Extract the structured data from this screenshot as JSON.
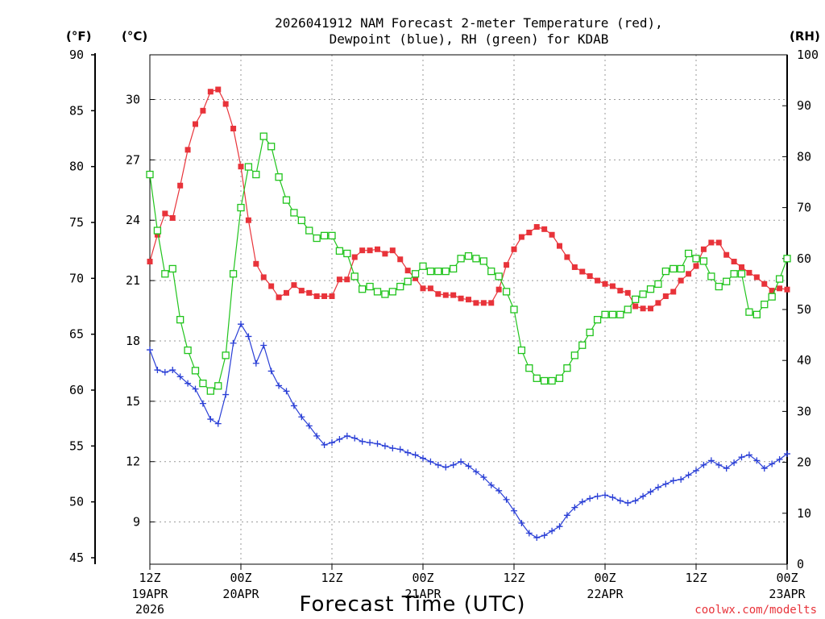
{
  "chart_data": {
    "type": "line",
    "title_line1": "2026041912 NAM Forecast 2-meter Temperature (red),",
    "title_line2": "Dewpoint (blue), RH (green) for KDAB",
    "xlabel": "Forecast Time (UTC)",
    "credit": "coolwx.com/modelts",
    "axis_units": {
      "fahrenheit": "(°F)",
      "celsius": "(°C)",
      "rh": "(RH)"
    },
    "hours_range": [
      0,
      84
    ],
    "y_fahrenheit": {
      "range": [
        45,
        90
      ],
      "ticks": [
        45,
        50,
        55,
        60,
        65,
        70,
        75,
        80,
        85,
        90
      ]
    },
    "y_celsius": {
      "ticks": [
        9,
        12,
        15,
        18,
        21,
        24,
        27,
        30
      ]
    },
    "y_rh": {
      "range": [
        0,
        100
      ],
      "ticks": [
        0,
        10,
        20,
        30,
        40,
        50,
        60,
        70,
        80,
        90,
        100
      ]
    },
    "x_ticks": [
      {
        "hour": 0,
        "line1": "12Z",
        "line2": "19APR",
        "line3": "2026"
      },
      {
        "hour": 12,
        "line1": "00Z",
        "line2": "20APR",
        "line3": ""
      },
      {
        "hour": 24,
        "line1": "12Z",
        "line2": "",
        "line3": ""
      },
      {
        "hour": 36,
        "line1": "00Z",
        "line2": "21APR",
        "line3": ""
      },
      {
        "hour": 48,
        "line1": "12Z",
        "line2": "",
        "line3": ""
      },
      {
        "hour": 60,
        "line1": "00Z",
        "line2": "22APR",
        "line3": ""
      },
      {
        "hour": 72,
        "line1": "12Z",
        "line2": "",
        "line3": ""
      },
      {
        "hour": 84,
        "line1": "00Z",
        "line2": "23APR",
        "line3": ""
      }
    ],
    "grid": true,
    "series": [
      {
        "name": "Temperature",
        "axis": "fahrenheit",
        "color": "#e8333a",
        "marker": "filled-square",
        "x": [
          0,
          1,
          2,
          3,
          4,
          5,
          6,
          7,
          8,
          9,
          10,
          11,
          12,
          13,
          14,
          15,
          16,
          17,
          18,
          19,
          20,
          21,
          22,
          23,
          24,
          25,
          26,
          27,
          28,
          29,
          30,
          31,
          32,
          33,
          34,
          35,
          36,
          37,
          38,
          39,
          40,
          41,
          42,
          43,
          44,
          45,
          46,
          47,
          48,
          49,
          50,
          51,
          52,
          53,
          54,
          55,
          56,
          57,
          58,
          59,
          60,
          61,
          62,
          63,
          64,
          65,
          66,
          67,
          68,
          69,
          70,
          71,
          72,
          73,
          74,
          75,
          76,
          77,
          78,
          79,
          80,
          81,
          82,
          83,
          84
        ],
        "values": [
          71.5,
          73.9,
          75.8,
          75.4,
          78.3,
          81.5,
          83.8,
          85.0,
          86.7,
          86.9,
          85.6,
          83.4,
          80.0,
          75.2,
          71.3,
          70.1,
          69.3,
          68.3,
          68.7,
          69.4,
          68.9,
          68.7,
          68.4,
          68.4,
          68.4,
          69.9,
          69.9,
          71.9,
          72.5,
          72.5,
          72.6,
          72.2,
          72.5,
          71.7,
          70.7,
          70.0,
          69.1,
          69.1,
          68.6,
          68.5,
          68.5,
          68.2,
          68.1,
          67.8,
          67.8,
          67.8,
          69.0,
          71.2,
          72.6,
          73.7,
          74.1,
          74.6,
          74.4,
          73.9,
          72.9,
          71.9,
          71.0,
          70.6,
          70.2,
          69.8,
          69.5,
          69.3,
          68.9,
          68.7,
          67.5,
          67.3,
          67.3,
          67.8,
          68.4,
          68.8,
          69.8,
          70.4,
          71.1,
          72.6,
          73.2,
          73.2,
          72.1,
          71.5,
          71.0,
          70.5,
          70.1,
          69.5,
          68.9,
          69.1,
          69.0
        ]
      },
      {
        "name": "Dewpoint",
        "axis": "fahrenheit",
        "color": "#2a3fd6",
        "marker": "plus",
        "x": [
          0,
          1,
          2,
          3,
          4,
          5,
          6,
          7,
          8,
          9,
          10,
          11,
          12,
          13,
          14,
          15,
          16,
          17,
          18,
          19,
          20,
          21,
          22,
          23,
          24,
          25,
          26,
          27,
          28,
          29,
          30,
          31,
          32,
          33,
          34,
          35,
          36,
          37,
          38,
          39,
          40,
          41,
          42,
          43,
          44,
          45,
          46,
          47,
          48,
          49,
          50,
          51,
          52,
          53,
          54,
          55,
          56,
          57,
          58,
          59,
          60,
          61,
          62,
          63,
          64,
          65,
          66,
          67,
          68,
          69,
          70,
          71,
          72,
          73,
          74,
          75,
          76,
          77,
          78,
          79,
          80,
          81,
          82,
          83,
          84
        ],
        "values": [
          63.6,
          61.8,
          61.6,
          61.8,
          61.2,
          60.6,
          60.1,
          58.8,
          57.4,
          57.0,
          59.6,
          64.2,
          65.9,
          64.8,
          62.4,
          64.0,
          61.7,
          60.4,
          59.9,
          58.6,
          57.6,
          56.8,
          55.9,
          55.1,
          55.3,
          55.6,
          55.9,
          55.7,
          55.4,
          55.3,
          55.2,
          55.0,
          54.8,
          54.7,
          54.4,
          54.2,
          53.9,
          53.6,
          53.3,
          53.1,
          53.3,
          53.6,
          53.2,
          52.7,
          52.2,
          51.5,
          51.0,
          50.2,
          49.2,
          48.1,
          47.2,
          46.8,
          47.0,
          47.4,
          47.8,
          48.8,
          49.5,
          50.0,
          50.3,
          50.5,
          50.6,
          50.4,
          50.1,
          49.9,
          50.1,
          50.5,
          50.9,
          51.3,
          51.6,
          51.9,
          52.0,
          52.4,
          52.8,
          53.3,
          53.7,
          53.3,
          53.0,
          53.5,
          54.0,
          54.2,
          53.7,
          53.0,
          53.4,
          53.8,
          54.3
        ]
      },
      {
        "name": "RH",
        "axis": "rh",
        "color": "#21c41d",
        "marker": "open-square",
        "x": [
          0,
          1,
          2,
          3,
          4,
          5,
          6,
          7,
          8,
          9,
          10,
          11,
          12,
          13,
          14,
          15,
          16,
          17,
          18,
          19,
          20,
          21,
          22,
          23,
          24,
          25,
          26,
          27,
          28,
          29,
          30,
          31,
          32,
          33,
          34,
          35,
          36,
          37,
          38,
          39,
          40,
          41,
          42,
          43,
          44,
          45,
          46,
          47,
          48,
          49,
          50,
          51,
          52,
          53,
          54,
          55,
          56,
          57,
          58,
          59,
          60,
          61,
          62,
          63,
          64,
          65,
          66,
          67,
          68,
          69,
          70,
          71,
          72,
          73,
          74,
          75,
          76,
          77,
          78,
          79,
          80,
          81,
          82,
          83,
          84
        ],
        "values": [
          76.5,
          65.5,
          57.0,
          58.0,
          48.0,
          42.0,
          38.0,
          35.5,
          34.0,
          35.0,
          41.0,
          57.0,
          70.0,
          78.0,
          76.5,
          84.0,
          82.0,
          76.0,
          71.5,
          69.0,
          67.5,
          65.5,
          64.0,
          64.5,
          64.5,
          61.5,
          61.0,
          56.5,
          54.0,
          54.5,
          53.5,
          53.0,
          53.5,
          54.5,
          55.5,
          57.0,
          58.5,
          57.5,
          57.5,
          57.5,
          58.0,
          60.0,
          60.5,
          60.0,
          59.5,
          57.5,
          56.5,
          53.5,
          50.0,
          42.0,
          38.5,
          36.5,
          36.0,
          36.0,
          36.5,
          38.5,
          41.0,
          43.0,
          45.5,
          48.0,
          49.0,
          49.0,
          49.0,
          50.0,
          52.0,
          53.0,
          54.0,
          55.0,
          57.5,
          58.0,
          58.0,
          61.0,
          60.0,
          59.5,
          56.5,
          54.5,
          55.5,
          57.0,
          57.0,
          49.5,
          49.0,
          51.0,
          52.5,
          56.0,
          60.0
        ]
      }
    ]
  }
}
